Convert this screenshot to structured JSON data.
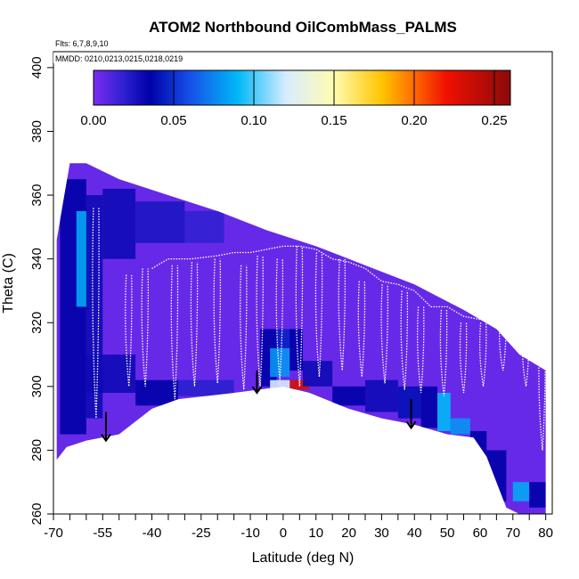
{
  "chart_data": {
    "type": "heatmap",
    "title": "ATOM2 Northbound OilCombMass_PALMS",
    "subtitle_flights": "Flts: 6,7,8,9,10",
    "subtitle_dates": "MMDD: 0210,0213,0215,0218,0219",
    "xlabel": "Latitude (deg N)",
    "ylabel": "Theta (C)",
    "xlim": [
      -70,
      82
    ],
    "ylim": [
      260,
      405
    ],
    "x_ticks": [
      -70,
      -55,
      -40,
      -25,
      -10,
      0,
      10,
      20,
      30,
      40,
      50,
      60,
      70,
      80
    ],
    "x_minor_ticks": [
      -65,
      -60,
      -50,
      -45,
      -35,
      -30,
      -20,
      -15,
      -5,
      5,
      15,
      25,
      35,
      45,
      55,
      65,
      75
    ],
    "y_ticks": [
      260,
      280,
      300,
      320,
      340,
      360,
      380,
      400
    ],
    "colorbar": {
      "min": 0,
      "max": 0.26,
      "ticks": [
        0.0,
        0.05,
        0.1,
        0.15,
        0.2,
        0.25
      ],
      "tick_labels": [
        "0.00",
        "0.05",
        "0.10",
        "0.15",
        "0.20",
        "0.25"
      ],
      "stops": [
        {
          "v": 0.0,
          "color": "#7b2cf0"
        },
        {
          "v": 0.02,
          "color": "#2a1fcf"
        },
        {
          "v": 0.035,
          "color": "#0000a8"
        },
        {
          "v": 0.06,
          "color": "#1650e8"
        },
        {
          "v": 0.09,
          "color": "#00b8f8"
        },
        {
          "v": 0.12,
          "color": "#d8ecff"
        },
        {
          "v": 0.15,
          "color": "#fffcb0"
        },
        {
          "v": 0.18,
          "color": "#ffc400"
        },
        {
          "v": 0.2,
          "color": "#ff6a00"
        },
        {
          "v": 0.22,
          "color": "#f01000"
        },
        {
          "v": 0.26,
          "color": "#8b0a0a"
        }
      ]
    },
    "background_value": 0.005,
    "envelope_top": [
      [
        -69,
        346
      ],
      [
        -65,
        370
      ],
      [
        -60,
        370
      ],
      [
        -50,
        365
      ],
      [
        -35,
        360
      ],
      [
        -20,
        355
      ],
      [
        -5,
        349
      ],
      [
        10,
        344
      ],
      [
        25,
        338
      ],
      [
        40,
        332
      ],
      [
        55,
        324
      ],
      [
        65,
        318
      ],
      [
        72,
        310
      ],
      [
        80,
        305
      ]
    ],
    "envelope_bottom": [
      [
        -69,
        277
      ],
      [
        -66,
        281
      ],
      [
        -60,
        283
      ],
      [
        -50,
        285
      ],
      [
        -40,
        293
      ],
      [
        -32,
        296
      ],
      [
        -15,
        298
      ],
      [
        0,
        300
      ],
      [
        8,
        298
      ],
      [
        20,
        293
      ],
      [
        30,
        290
      ],
      [
        40,
        288
      ],
      [
        50,
        285
      ],
      [
        58,
        284
      ],
      [
        62,
        278
      ],
      [
        68,
        262
      ],
      [
        72,
        260
      ],
      [
        80,
        260
      ]
    ],
    "cells": [
      {
        "x": [
          -68,
          -60
        ],
        "y": [
          285,
          365
        ],
        "v": 0.035
      },
      {
        "x": [
          -63,
          -59
        ],
        "y": [
          325,
          355
        ],
        "v": 0.085
      },
      {
        "x": [
          -60,
          -55
        ],
        "y": [
          290,
          360
        ],
        "v": 0.03
      },
      {
        "x": [
          -55,
          -45
        ],
        "y": [
          340,
          362
        ],
        "v": 0.03
      },
      {
        "x": [
          -45,
          -30
        ],
        "y": [
          345,
          358
        ],
        "v": 0.025
      },
      {
        "x": [
          -30,
          -18
        ],
        "y": [
          345,
          355
        ],
        "v": 0.018
      },
      {
        "x": [
          -60,
          -45
        ],
        "y": [
          298,
          310
        ],
        "v": 0.03
      },
      {
        "x": [
          -45,
          -32
        ],
        "y": [
          294,
          302
        ],
        "v": 0.035
      },
      {
        "x": [
          -32,
          -15
        ],
        "y": [
          297,
          302
        ],
        "v": 0.02
      },
      {
        "x": [
          -7,
          -2
        ],
        "y": [
          300,
          318
        ],
        "v": 0.035
      },
      {
        "x": [
          -4,
          2
        ],
        "y": [
          303,
          312
        ],
        "v": 0.08
      },
      {
        "x": [
          -2,
          3
        ],
        "y": [
          312,
          318
        ],
        "v": 0.045
      },
      {
        "x": [
          2,
          6
        ],
        "y": [
          305,
          318
        ],
        "v": 0.035
      },
      {
        "x": [
          2,
          8
        ],
        "y": [
          299,
          302
        ],
        "v": 0.23
      },
      {
        "x": [
          -4,
          2
        ],
        "y": [
          299,
          302
        ],
        "v": 0.12
      },
      {
        "x": [
          6,
          15
        ],
        "y": [
          300,
          308
        ],
        "v": 0.03
      },
      {
        "x": [
          15,
          25
        ],
        "y": [
          294,
          300
        ],
        "v": 0.035
      },
      {
        "x": [
          25,
          35
        ],
        "y": [
          292,
          302
        ],
        "v": 0.03
      },
      {
        "x": [
          35,
          42
        ],
        "y": [
          290,
          300
        ],
        "v": 0.04
      },
      {
        "x": [
          42,
          47
        ],
        "y": [
          287,
          300
        ],
        "v": 0.035
      },
      {
        "x": [
          47,
          51
        ],
        "y": [
          286,
          298
        ],
        "v": 0.09
      },
      {
        "x": [
          51,
          57
        ],
        "y": [
          285,
          290
        ],
        "v": 0.08
      },
      {
        "x": [
          57,
          62
        ],
        "y": [
          278,
          286
        ],
        "v": 0.035
      },
      {
        "x": [
          62,
          68
        ],
        "y": [
          264,
          280
        ],
        "v": 0.035
      },
      {
        "x": [
          70,
          75
        ],
        "y": [
          264,
          270
        ],
        "v": 0.085
      },
      {
        "x": [
          75,
          80
        ],
        "y": [
          262,
          270
        ],
        "v": 0.035
      }
    ],
    "profile_lines": [
      {
        "x": -57,
        "top": 356,
        "bottom": 290
      },
      {
        "x": -47,
        "top": 335,
        "bottom": 300
      },
      {
        "x": -42,
        "top": 337,
        "bottom": 300
      },
      {
        "x": -33,
        "top": 338,
        "bottom": 296
      },
      {
        "x": -27,
        "top": 339,
        "bottom": 300
      },
      {
        "x": -20,
        "top": 340,
        "bottom": 301
      },
      {
        "x": -12,
        "top": 338,
        "bottom": 299
      },
      {
        "x": -7,
        "top": 341,
        "bottom": 300
      },
      {
        "x": -1,
        "top": 340,
        "bottom": 302
      },
      {
        "x": 5,
        "top": 344,
        "bottom": 300
      },
      {
        "x": 11,
        "top": 342,
        "bottom": 303
      },
      {
        "x": 18,
        "top": 340,
        "bottom": 305
      },
      {
        "x": 24,
        "top": 333,
        "bottom": 303
      },
      {
        "x": 31,
        "top": 332,
        "bottom": 301
      },
      {
        "x": 37,
        "top": 330,
        "bottom": 299
      },
      {
        "x": 42,
        "top": 325,
        "bottom": 298
      },
      {
        "x": 49,
        "top": 324,
        "bottom": 297
      },
      {
        "x": 55,
        "top": 320,
        "bottom": 298
      },
      {
        "x": 61,
        "top": 320,
        "bottom": 300
      },
      {
        "x": 67,
        "top": 321,
        "bottom": 305
      },
      {
        "x": 74,
        "top": 318,
        "bottom": 300
      },
      {
        "x": 79,
        "top": 316,
        "bottom": 280
      }
    ],
    "top_trace": [
      [
        -40,
        337
      ],
      [
        -35,
        340
      ],
      [
        -28,
        340
      ],
      [
        -20,
        341
      ],
      [
        -15,
        342
      ],
      [
        -10,
        342
      ],
      [
        -5,
        343
      ],
      [
        0,
        344
      ],
      [
        5,
        344
      ],
      [
        10,
        343
      ],
      [
        15,
        340
      ],
      [
        20,
        339
      ],
      [
        25,
        337
      ],
      [
        30,
        333
      ],
      [
        35,
        332
      ],
      [
        40,
        330
      ],
      [
        45,
        325
      ],
      [
        50,
        325
      ],
      [
        55,
        322
      ],
      [
        60,
        321
      ],
      [
        65,
        320
      ],
      [
        70,
        318
      ]
    ],
    "arrows": [
      {
        "x": -54,
        "y_from": 292,
        "y_to": 283
      },
      {
        "x": -8,
        "y_from": 305,
        "y_to": 298
      },
      {
        "x": 39,
        "y_from": 296,
        "y_to": 287
      }
    ]
  }
}
